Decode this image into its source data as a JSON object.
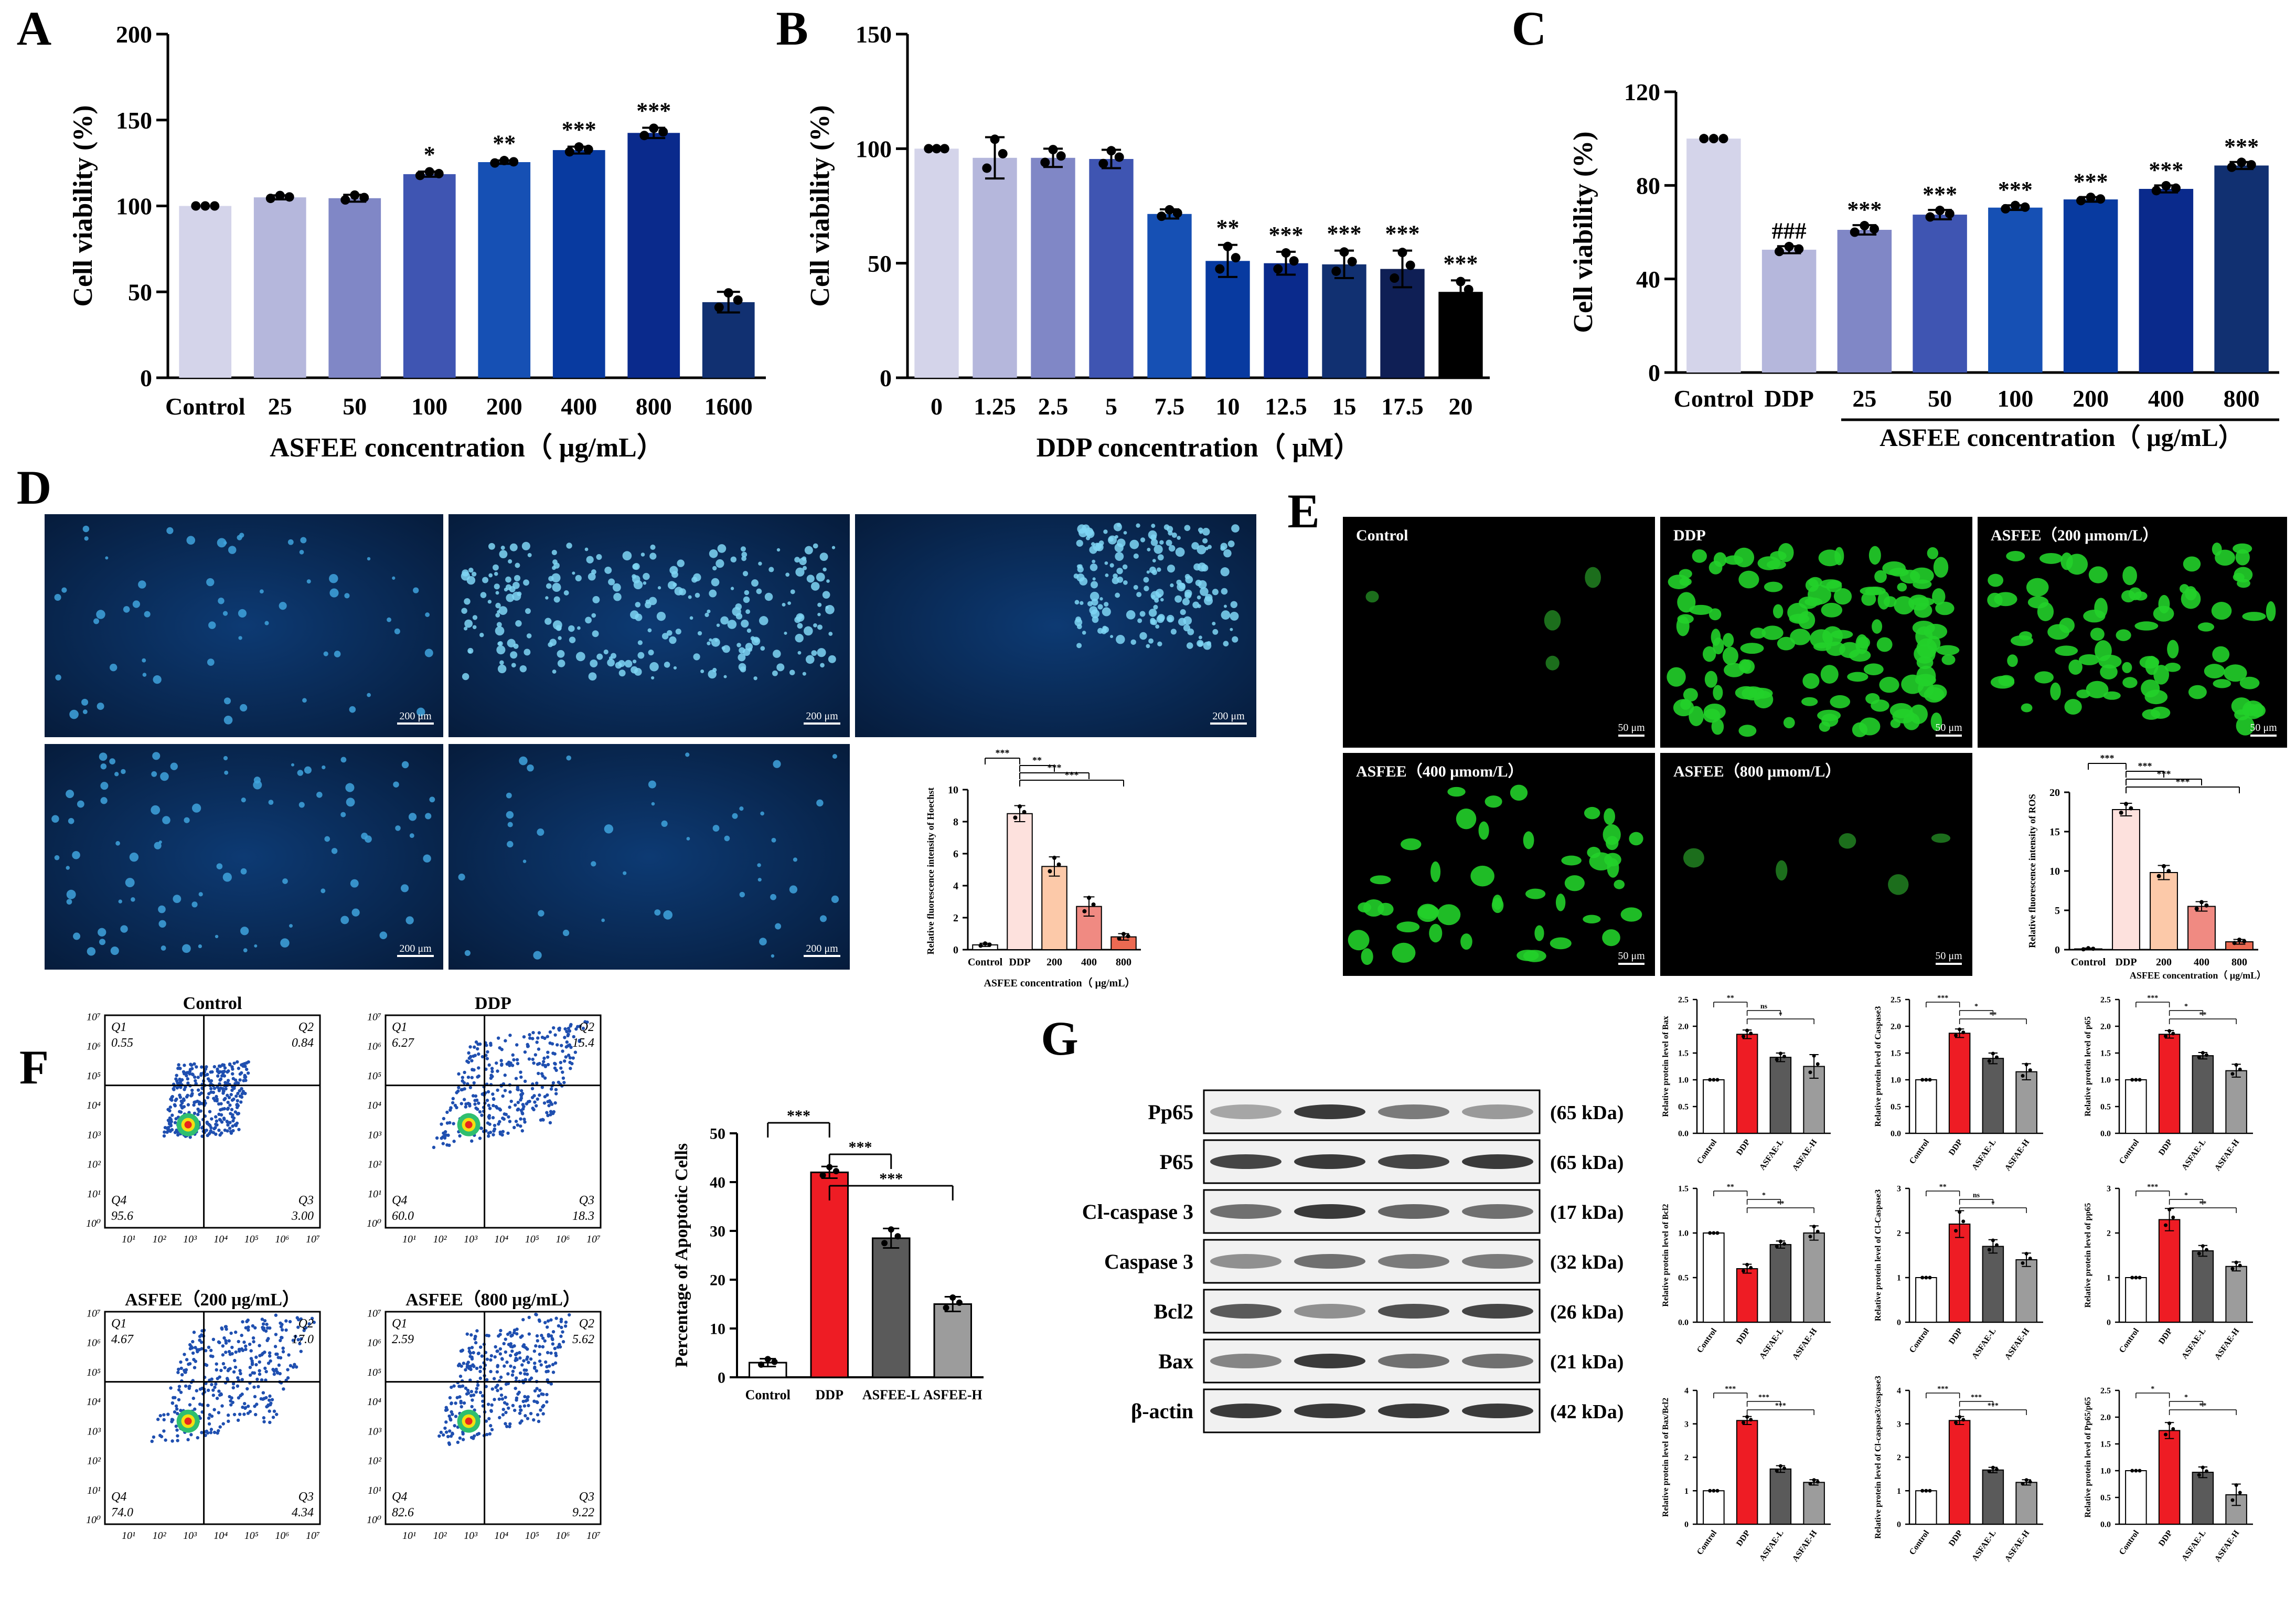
{
  "panel_letters": [
    "A",
    "B",
    "C",
    "D",
    "E",
    "F",
    "G"
  ],
  "chart_data": [
    {
      "id": "A",
      "type": "bar",
      "ylabel": "Cell viability (%)",
      "xlabel": "ASFEE concentration（ μg/mL）",
      "ylim": [
        0,
        200
      ],
      "yticks": [
        "0",
        "50",
        "100",
        "150",
        "200"
      ],
      "categories": [
        "Control",
        "25",
        "50",
        "100",
        "200",
        "400",
        "800",
        "1600"
      ],
      "values": [
        100,
        105,
        104.5,
        118.5,
        125.5,
        132.5,
        142.5,
        44
      ],
      "errors": [
        0,
        1.2,
        2,
        1.5,
        1,
        2,
        3,
        6
      ],
      "significance": [
        "",
        "",
        "",
        "*",
        "**",
        "***",
        "***",
        ""
      ],
      "colors": [
        "#d4d4ea",
        "#b5b7dc",
        "#8087c6",
        "#3f55b2",
        "#1650b4",
        "#083aa0",
        "#0a2a8c",
        "#113071"
      ]
    },
    {
      "id": "B",
      "type": "bar",
      "ylabel": "Cell viability (%)",
      "xlabel": "DDP concentration（ μM）",
      "ylim": [
        0,
        150
      ],
      "yticks": [
        "0",
        "50",
        "100",
        "150"
      ],
      "categories": [
        "0",
        "1.25",
        "2.5",
        "5",
        "7.5",
        "10",
        "12.5",
        "15",
        "17.5",
        "20"
      ],
      "values": [
        100,
        96,
        96,
        95.5,
        71.5,
        51,
        50,
        49.5,
        47.5,
        37.5
      ],
      "errors": [
        0,
        9,
        4,
        4,
        2,
        7,
        5,
        6,
        8,
        5
      ],
      "significance": [
        "",
        "",
        "",
        "",
        "",
        "**",
        "***",
        "***",
        "***",
        "***"
      ],
      "colors": [
        "#d4d4ea",
        "#b5b7dc",
        "#8087c6",
        "#3f55b2",
        "#1650b4",
        "#083aa0",
        "#0a2a8c",
        "#113071",
        "#0f1f55",
        "#000000"
      ]
    },
    {
      "id": "C",
      "type": "bar",
      "ylabel": "Cell viability (%)",
      "group_label": "ASFEE concentration（ μg/mL）",
      "ylim": [
        0,
        120
      ],
      "yticks": [
        "0",
        "40",
        "80",
        "120"
      ],
      "categories": [
        "Control",
        "DDP",
        "25",
        "50",
        "100",
        "200",
        "400",
        "800"
      ],
      "values": [
        100,
        52.5,
        61,
        67.5,
        70.5,
        74,
        78.5,
        88.5
      ],
      "errors": [
        0,
        1.5,
        2,
        2,
        1,
        1,
        1.5,
        1.5
      ],
      "significance": [
        "",
        "###",
        "***",
        "***",
        "***",
        "***",
        "***",
        "***"
      ],
      "colors": [
        "#d4d4ea",
        "#b5b7dc",
        "#8087c6",
        "#3f55b2",
        "#1650b4",
        "#083aa0",
        "#0a2a8c",
        "#113071"
      ]
    },
    {
      "id": "D-inset",
      "type": "bar",
      "ylabel": "Relative fluorescence intensity of Hoechst",
      "xlabel": "ASFEE concentration（ μg/mL）",
      "ylim": [
        0,
        10
      ],
      "yticks": [
        "0",
        "2",
        "4",
        "6",
        "8",
        "10"
      ],
      "categories": [
        "Control",
        "DDP",
        "200",
        "400",
        "800"
      ],
      "values": [
        0.3,
        8.5,
        5.2,
        2.7,
        0.8
      ],
      "errors": [
        0.1,
        0.5,
        0.6,
        0.6,
        0.2
      ],
      "colors": [
        "#ffffff",
        "#fde1dd",
        "#fcc9a9",
        "#f08a82",
        "#ec6a52"
      ],
      "brackets": [
        "***",
        "**",
        "***",
        "***"
      ]
    },
    {
      "id": "E-inset",
      "type": "bar",
      "ylabel": "Relative fluorescence intensity of ROS",
      "xlabel": "ASFEE concentration（ μg/mL）",
      "ylim": [
        0,
        20
      ],
      "yticks": [
        "0",
        "5",
        "10",
        "15",
        "20"
      ],
      "categories": [
        "Control",
        "DDP",
        "200",
        "400",
        "800"
      ],
      "values": [
        0.1,
        17.8,
        9.8,
        5.5,
        1
      ],
      "errors": [
        0.1,
        0.8,
        0.9,
        0.6,
        0.3
      ],
      "colors": [
        "#ffffff",
        "#fde1dd",
        "#fcc9a9",
        "#f08a82",
        "#ec6a52"
      ],
      "brackets": [
        "***",
        "***",
        "***",
        "***"
      ]
    },
    {
      "id": "F-bar",
      "type": "bar",
      "ylabel": "Percentage of Apoptotic Cells",
      "ylim": [
        0,
        50
      ],
      "yticks": [
        "0",
        "10",
        "20",
        "30",
        "40",
        "50"
      ],
      "categories": [
        "Control",
        "DDP",
        "ASFEE-L",
        "ASFEE-H"
      ],
      "values": [
        3,
        42,
        28.5,
        15
      ],
      "errors": [
        0.8,
        1.2,
        2,
        1.5
      ],
      "colors": [
        "#ffffff",
        "#ee1c24",
        "#5a5a5a",
        "#9c9c9c"
      ],
      "brackets": [
        "***",
        "***",
        "***"
      ]
    },
    {
      "id": "G-Bax",
      "type": "bar",
      "ylabel": "Relative protein level of Bax",
      "ylim": [
        0,
        2.5
      ],
      "yticks": [
        "0.0",
        "0.5",
        "1.0",
        "1.5",
        "2.0",
        "2.5"
      ],
      "categories": [
        "Control",
        "DDP",
        "ASFAE-L",
        "ASFAE-H"
      ],
      "values": [
        1.0,
        1.85,
        1.42,
        1.25
      ],
      "errors": [
        0,
        0.08,
        0.08,
        0.22
      ],
      "brackets": [
        "**",
        "ns",
        "*"
      ]
    },
    {
      "id": "G-Caspase3",
      "type": "bar",
      "ylabel": "Relative protein level of Caspase3",
      "ylim": [
        0,
        2.5
      ],
      "yticks": [
        "0.0",
        "0.5",
        "1.0",
        "1.5",
        "2.0",
        "2.5"
      ],
      "categories": [
        "Control",
        "DDP",
        "ASFAE-L",
        "ASFAE-H"
      ],
      "values": [
        1.0,
        1.87,
        1.4,
        1.15
      ],
      "errors": [
        0,
        0.08,
        0.1,
        0.15
      ],
      "brackets": [
        "***",
        "*",
        "**"
      ]
    },
    {
      "id": "G-p65",
      "type": "bar",
      "ylabel": "Relative protein level of p65",
      "ylim": [
        0,
        2.5
      ],
      "yticks": [
        "0.0",
        "0.5",
        "1.0",
        "1.5",
        "2.0",
        "2.5"
      ],
      "categories": [
        "Control",
        "DDP",
        "ASFAE-L",
        "ASFAE-H"
      ],
      "values": [
        1.0,
        1.85,
        1.45,
        1.17
      ],
      "errors": [
        0,
        0.07,
        0.06,
        0.12
      ],
      "brackets": [
        "***",
        "*",
        "**"
      ]
    },
    {
      "id": "G-Bcl2",
      "type": "bar",
      "ylabel": "Relative protein level of Bcl2",
      "ylim": [
        0,
        1.5
      ],
      "yticks": [
        "0.0",
        "0.5",
        "1.0",
        "1.5"
      ],
      "categories": [
        "Control",
        "DDP",
        "ASFAE-L",
        "ASFAE-H"
      ],
      "values": [
        1.0,
        0.6,
        0.87,
        1.0
      ],
      "errors": [
        0,
        0.05,
        0.04,
        0.08
      ],
      "brackets": [
        "**",
        "*",
        "**"
      ]
    },
    {
      "id": "G-ClCaspase3",
      "type": "bar",
      "ylabel": "Relative protein level of Cl-Caspase3",
      "ylim": [
        0,
        3
      ],
      "yticks": [
        "0",
        "1",
        "2",
        "3"
      ],
      "categories": [
        "Control",
        "DDP",
        "ASFAE-L",
        "ASFAE-H"
      ],
      "values": [
        1.0,
        2.2,
        1.7,
        1.4
      ],
      "errors": [
        0,
        0.3,
        0.15,
        0.15
      ],
      "brackets": [
        "**",
        "ns",
        "*"
      ]
    },
    {
      "id": "G-pp65",
      "type": "bar",
      "ylabel": "Relative protein level of pp65",
      "ylim": [
        0,
        3
      ],
      "yticks": [
        "0",
        "1",
        "2",
        "3"
      ],
      "categories": [
        "Control",
        "DDP",
        "ASFAE-L",
        "ASFAE-H"
      ],
      "values": [
        1.0,
        2.3,
        1.6,
        1.25
      ],
      "errors": [
        0,
        0.25,
        0.12,
        0.1
      ],
      "brackets": [
        "***",
        "*",
        "**"
      ]
    },
    {
      "id": "G-BaxBcl2",
      "type": "bar",
      "ylabel": "Relative protein level of Bax/Bcl2",
      "ylim": [
        0,
        4
      ],
      "yticks": [
        "0",
        "1",
        "2",
        "3",
        "4"
      ],
      "categories": [
        "Control",
        "DDP",
        "ASFAE-L",
        "ASFAE-H"
      ],
      "values": [
        1.0,
        3.1,
        1.65,
        1.25
      ],
      "errors": [
        0,
        0.12,
        0.1,
        0.08
      ],
      "brackets": [
        "***",
        "***",
        "***"
      ]
    },
    {
      "id": "G-ClCasp",
      "type": "bar",
      "ylabel": "Relative protein level of Cl-caspase3/caspase3",
      "ylim": [
        0,
        4
      ],
      "yticks": [
        "0",
        "1",
        "2",
        "3",
        "4"
      ],
      "categories": [
        "Control",
        "DDP",
        "ASFAE-L",
        "ASFAE-H"
      ],
      "values": [
        1.0,
        3.1,
        1.62,
        1.25
      ],
      "errors": [
        0,
        0.12,
        0.08,
        0.08
      ],
      "brackets": [
        "***",
        "***",
        "***"
      ]
    },
    {
      "id": "G-Pp65p65",
      "type": "bar",
      "ylabel": "Relative protein level of Pp65/p65",
      "ylim": [
        0,
        2.5
      ],
      "yticks": [
        "0.0",
        "0.5",
        "1.0",
        "1.5",
        "2.0",
        "2.5"
      ],
      "categories": [
        "Control",
        "DDP",
        "ASFAE-L",
        "ASFAE-H"
      ],
      "values": [
        1.0,
        1.75,
        0.97,
        0.55
      ],
      "errors": [
        0,
        0.15,
        0.1,
        0.2
      ],
      "brackets": [
        "*",
        "*",
        "**"
      ]
    }
  ],
  "panel_D": {
    "scale_bar": "200 μm"
  },
  "panel_E": {
    "labels": [
      "Control",
      "DDP",
      "ASFEE（200 μmom/L）",
      "ASFEE（400 μmom/L）",
      "ASFEE（800 μmom/L）"
    ],
    "scale_bar": "50 μm"
  },
  "panel_F": {
    "plots": [
      {
        "title": "Control",
        "q": [
          "0.55",
          "0.84",
          "95.6",
          "3.00"
        ]
      },
      {
        "title": "DDP",
        "q": [
          "6.27",
          "15.4",
          "60.0",
          "18.3"
        ]
      },
      {
        "title": "ASFEE（200 μg/mL）",
        "q": [
          "4.67",
          "17.0",
          "74.0",
          "4.34"
        ]
      },
      {
        "title": "ASFEE（800 μg/mL）",
        "q": [
          "2.59",
          "5.62",
          "82.6",
          "9.22"
        ]
      }
    ],
    "quadrant_names": [
      "Q1",
      "Q2",
      "Q4",
      "Q3"
    ]
  },
  "panel_G": {
    "bands": [
      {
        "name": "Pp65",
        "kda": "(65 kDa)"
      },
      {
        "name": "P65",
        "kda": "(65 kDa)"
      },
      {
        "name": "Cl-caspase 3",
        "kda": "(17 kDa)"
      },
      {
        "name": "Caspase 3",
        "kda": "(32 kDa)"
      },
      {
        "name": "Bcl2",
        "kda": "(26 kDa)"
      },
      {
        "name": "Bax",
        "kda": "(21 kDa)"
      },
      {
        "name": "β-actin",
        "kda": "(42 kDa)"
      }
    ]
  }
}
